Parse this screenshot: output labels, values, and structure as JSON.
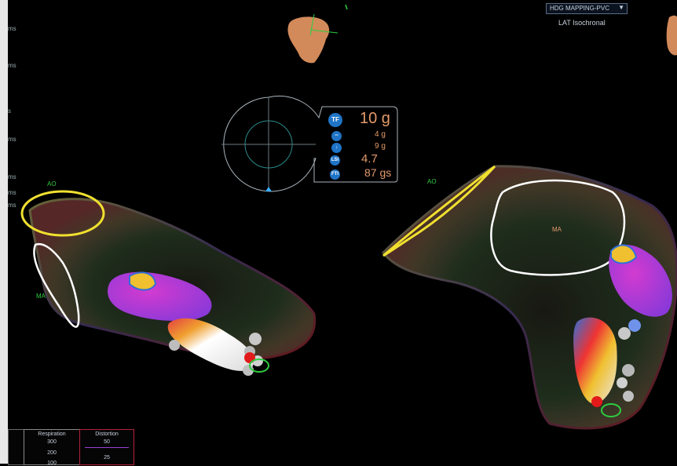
{
  "left_panel_labels": [
    "ms",
    "ms",
    "s",
    "ms",
    "ms",
    "ms",
    "ms"
  ],
  "map_menu": {
    "selected": "HDG MAPPING-PVC",
    "type_label": "LAT Isochronal"
  },
  "force": {
    "total": "10 g",
    "lateral": "4 g",
    "axial": "9 g",
    "lsi": "4.7",
    "fti": "87 gs",
    "icons": [
      "TF",
      "lateral-force-icon",
      "axial-force-icon",
      "LSI",
      "FTI"
    ]
  },
  "views": {
    "left": {
      "ao": "AO",
      "ma": "MA"
    },
    "right": {
      "ao": "AO",
      "ma": "MA"
    }
  },
  "bottom": {
    "respiration": {
      "title": "Respiration",
      "values": [
        "300",
        "200",
        "100"
      ]
    },
    "distortion": {
      "title": "Distortion",
      "values": [
        "50",
        "25"
      ]
    }
  },
  "colors": {
    "accent": "#e39a6b",
    "label_green": "#2ecc40",
    "ring_yellow": "#f0e030",
    "ring_white": "#ffffff",
    "purple": "#9a3fd6"
  }
}
